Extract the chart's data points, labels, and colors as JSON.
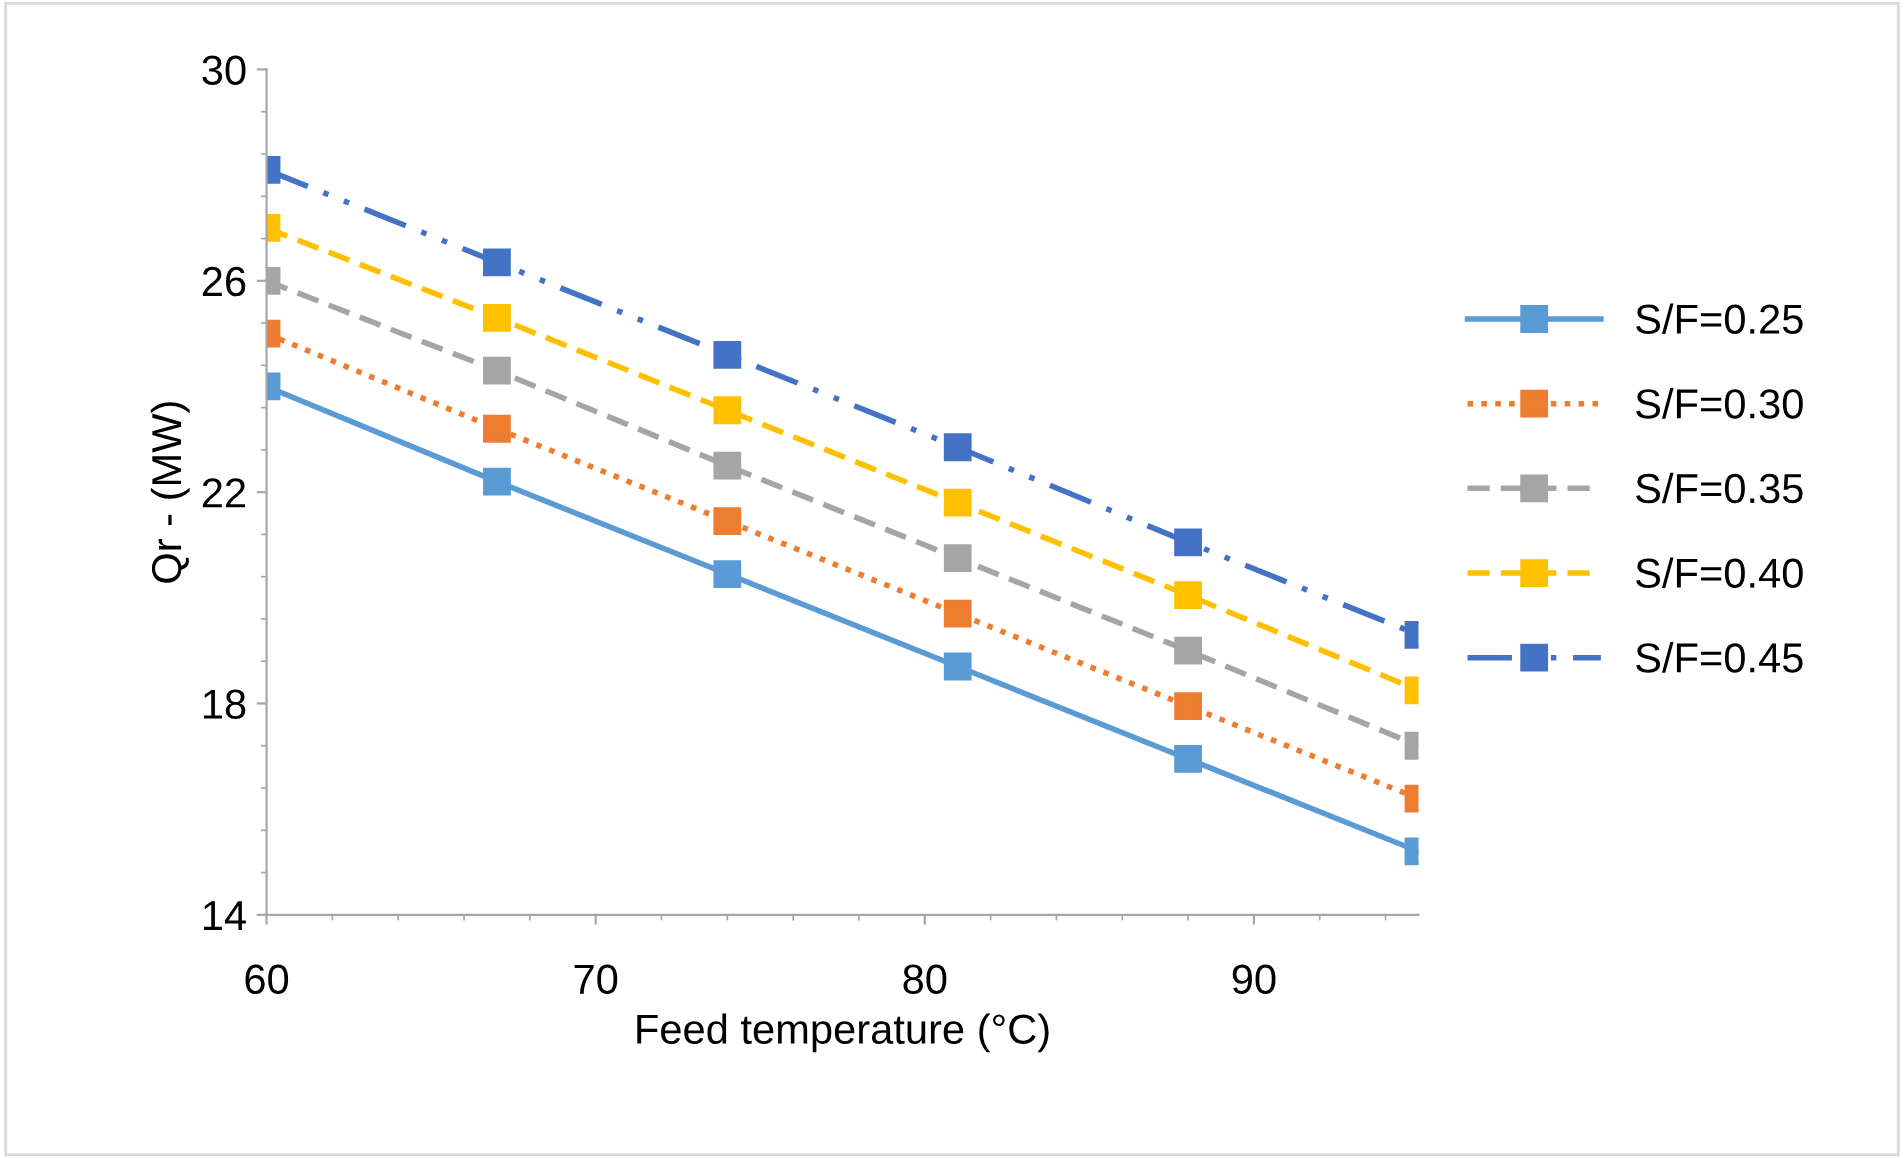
{
  "chart_data": {
    "type": "line",
    "xlabel": "Feed temperature (°C)",
    "ylabel": "Qr - (MW)",
    "x": [
      60,
      67,
      74,
      81,
      88,
      95
    ],
    "series": [
      {
        "name": "S/F=0.25",
        "color": "#5b9bd5",
        "line_style": "solid",
        "values": [
          24.0,
          22.2,
          20.45,
          18.7,
          16.95,
          15.2
        ]
      },
      {
        "name": "S/F=0.30",
        "color": "#ed7d31",
        "line_style": "dotted",
        "values": [
          25.0,
          23.2,
          21.45,
          19.7,
          17.95,
          16.2
        ]
      },
      {
        "name": "S/F=0.35",
        "color": "#a5a5a5",
        "line_style": "dashed",
        "values": [
          26.0,
          24.3,
          22.5,
          20.75,
          19.0,
          17.2
        ]
      },
      {
        "name": "S/F=0.40",
        "color": "#ffc000",
        "line_style": "dashed",
        "values": [
          27.0,
          25.3,
          23.55,
          21.8,
          20.05,
          18.25
        ]
      },
      {
        "name": "S/F=0.45",
        "color": "#4472c4",
        "line_style": "dashdotdot",
        "values": [
          28.1,
          26.35,
          24.6,
          22.85,
          21.05,
          19.3
        ]
      }
    ],
    "xlim": [
      60,
      95
    ],
    "xticks": [
      60,
      70,
      80,
      90
    ],
    "ylim": [
      14,
      30
    ],
    "yticks": [
      14,
      18,
      22,
      26,
      30
    ],
    "grid": false,
    "legend": "right",
    "marker": "square"
  }
}
